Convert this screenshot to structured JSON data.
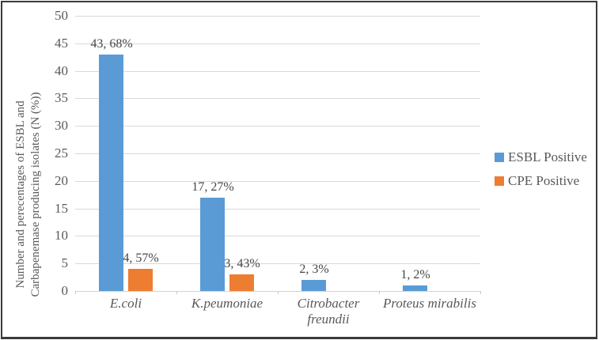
{
  "chart_data": {
    "type": "bar",
    "title": "",
    "categories": [
      "E.coli",
      "K.peumoniae",
      "Citrobacter freundii",
      "Proteus mirabilis"
    ],
    "series": [
      {
        "name": "ESBL Positive",
        "color": "#5b9bd5",
        "values": [
          43,
          17,
          2,
          1
        ],
        "data_labels": [
          "43, 68%",
          "17, 27%",
          "2, 3%",
          "1, 2%"
        ]
      },
      {
        "name": "CPE Positive",
        "color": "#ed7d31",
        "values": [
          4,
          3,
          0,
          0
        ],
        "data_labels": [
          "4, 57%",
          "3, 43%",
          "",
          ""
        ]
      }
    ],
    "xlabel": "",
    "ylabel_line1": "Number and perecentages of ESBL and",
    "ylabel_line2": "Carbapenemase producing isolates (N (%))",
    "ylim": [
      0,
      50
    ],
    "yticks": [
      "0",
      "5",
      "10",
      "15",
      "20",
      "25",
      "30",
      "35",
      "40",
      "45",
      "50"
    ],
    "grid": true,
    "legend_position": "right"
  },
  "colors": {
    "esbl_blue": "#5b9bd5",
    "cpe_orange": "#ed7d31",
    "gridline": "#d9d9d9",
    "axis_text": "#595959",
    "data_label_text": "#454545",
    "border": "#3a3a3a",
    "background": "#ffffff"
  }
}
